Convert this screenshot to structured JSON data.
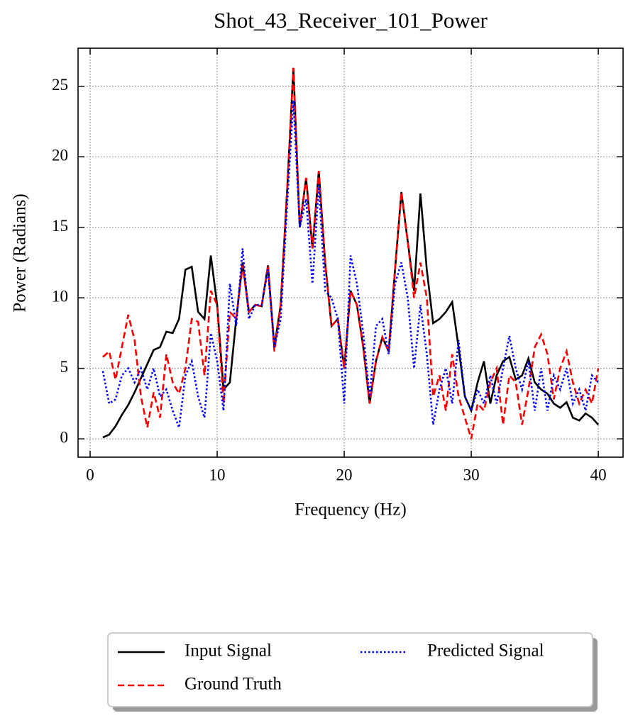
{
  "chart_data": {
    "type": "line",
    "title": "Shot_43_Receiver_101_Power",
    "xlabel": "Frequency (Hz)",
    "ylabel": "Power (Radians)",
    "x": [
      1,
      1.5,
      2,
      2.5,
      3,
      3.5,
      4,
      4.5,
      5,
      5.5,
      6,
      6.5,
      7,
      7.5,
      8,
      8.5,
      9,
      9.5,
      10,
      10.5,
      11,
      11.5,
      12,
      12.5,
      13,
      13.5,
      14,
      14.5,
      15,
      15.5,
      16,
      16.5,
      17,
      17.5,
      18,
      18.5,
      19,
      19.5,
      20,
      20.5,
      21,
      21.5,
      22,
      22.5,
      23,
      23.5,
      24,
      24.5,
      25,
      25.5,
      26,
      26.5,
      27,
      27.5,
      28,
      28.5,
      29,
      29.5,
      30,
      30.5,
      31,
      31.5,
      32,
      32.5,
      33,
      33.5,
      34,
      34.5,
      35,
      35.5,
      36,
      36.5,
      37,
      37.5,
      38,
      38.5,
      39,
      39.5,
      40
    ],
    "series": [
      {
        "name": "Input Signal",
        "color": "#000000",
        "dash": "solid",
        "values": [
          0.1,
          0.3,
          0.9,
          1.7,
          2.4,
          3.3,
          4.3,
          5.3,
          6.3,
          6.5,
          7.6,
          7.5,
          8.5,
          12.0,
          12.2,
          9.0,
          8.5,
          13.0,
          9.5,
          3.5,
          4.0,
          8.5,
          12.5,
          9.0,
          9.5,
          9.4,
          12.3,
          6.5,
          9.5,
          17.5,
          26.3,
          15.0,
          18.5,
          13.5,
          19.0,
          12.5,
          8.0,
          8.5,
          5.0,
          10.5,
          9.5,
          6.5,
          2.5,
          5.5,
          7.2,
          6.2,
          12.0,
          17.5,
          14.0,
          10.5,
          17.4,
          12.0,
          8.2,
          8.5,
          9.0,
          9.7,
          6.5,
          3.0,
          2.0,
          4.0,
          5.5,
          2.5,
          4.5,
          5.5,
          5.8,
          4.2,
          4.5,
          5.7,
          4.0,
          3.5,
          3.2,
          2.5,
          2.2,
          2.6,
          1.5,
          1.3,
          1.8,
          1.5,
          1.0
        ]
      },
      {
        "name": "Ground Truth",
        "color": "#ff0000",
        "dash": "dashed",
        "values": [
          5.8,
          6.2,
          4.2,
          6.5,
          8.8,
          7.0,
          3.0,
          0.8,
          3.3,
          1.5,
          6.0,
          4.0,
          3.2,
          5.0,
          8.5,
          8.3,
          4.5,
          10.5,
          9.5,
          2.5,
          9.0,
          8.5,
          12.3,
          9.0,
          9.5,
          9.4,
          12.3,
          6.2,
          9.5,
          17.5,
          26.3,
          15.0,
          18.5,
          13.5,
          19.0,
          12.5,
          8.0,
          8.5,
          5.0,
          10.5,
          9.5,
          6.5,
          2.5,
          5.5,
          7.2,
          6.2,
          12.0,
          17.5,
          14.0,
          10.0,
          12.5,
          10.0,
          3.0,
          4.5,
          2.0,
          6.0,
          3.0,
          1.5,
          0.0,
          2.5,
          2.0,
          4.0,
          5.0,
          1.0,
          4.5,
          4.0,
          1.0,
          3.5,
          6.5,
          7.4,
          6.0,
          2.8,
          5.0,
          6.2,
          4.0,
          2.5,
          3.5,
          2.5,
          5.0
        ]
      },
      {
        "name": "Predicted Signal",
        "color": "#0000ff",
        "dash": "dotted",
        "values": [
          4.8,
          2.5,
          2.8,
          4.5,
          5.0,
          4.0,
          5.0,
          3.5,
          5.0,
          3.0,
          3.5,
          2.0,
          0.8,
          4.5,
          5.5,
          3.0,
          1.5,
          7.5,
          5.5,
          2.0,
          11.0,
          8.0,
          13.5,
          8.5,
          9.5,
          9.5,
          12.0,
          6.5,
          8.5,
          16.5,
          24.0,
          15.0,
          17.0,
          11.0,
          18.0,
          10.5,
          10.0,
          8.5,
          2.5,
          13.0,
          11.0,
          7.5,
          3.0,
          8.0,
          8.5,
          6.0,
          11.0,
          12.5,
          10.0,
          5.0,
          9.5,
          6.0,
          1.0,
          3.5,
          5.0,
          2.5,
          7.0,
          3.0,
          2.0,
          3.5,
          2.5,
          4.5,
          2.5,
          5.0,
          7.3,
          5.0,
          3.5,
          5.5,
          2.0,
          5.0,
          2.0,
          4.5,
          3.5,
          5.0,
          2.5,
          3.5,
          2.0,
          4.5,
          4.0
        ]
      }
    ],
    "xlim": [
      -0.95,
      41.95
    ],
    "xticks": [
      0,
      10,
      20,
      30,
      40
    ],
    "ylim": [
      -1.3,
      27.7
    ],
    "yticks": [
      0,
      5,
      10,
      15,
      20,
      25
    ],
    "grid": true,
    "legend": "lower center"
  }
}
